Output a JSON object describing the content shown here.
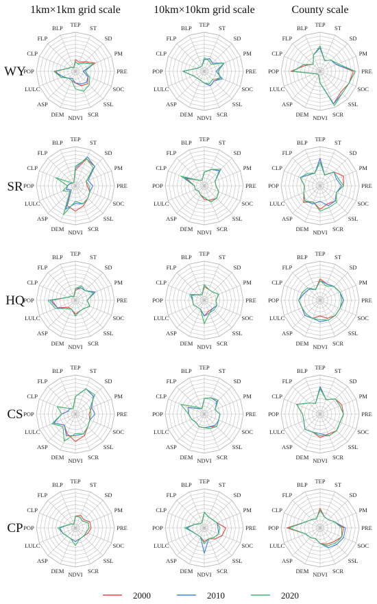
{
  "colors": {
    "2000": "#e8473f",
    "2010": "#3f82e0",
    "2020": "#3fb86a",
    "grid": "#b8b8b8"
  },
  "chart_data": {
    "type": "radar-grid",
    "columns": [
      "1km×1km grid scale",
      "10km×10km grid scale",
      "County scale"
    ],
    "rows": [
      "WY",
      "SR",
      "HQ",
      "CS",
      "CP"
    ],
    "axes": [
      "TEP",
      "ST",
      "SD",
      "PM",
      "PRE",
      "SOC",
      "SSL",
      "SCR",
      "NDVI",
      "DEM",
      "ASP",
      "LULC",
      "POP",
      "CLP",
      "FLP",
      "BLP"
    ],
    "rlim": [
      0,
      1
    ],
    "legend": {
      "placement": "bottom",
      "entries": [
        "2000",
        "2010",
        "2020"
      ]
    },
    "series_names": [
      "2000",
      "2010",
      "2020"
    ],
    "panels": [
      {
        "row": "WY",
        "col": 0,
        "values": [
          [
            0.3,
            0.25,
            0.35,
            0.55,
            0.2,
            0.35,
            0.45,
            0.4,
            0.3,
            0.25,
            0.25,
            0.4,
            0.5,
            0.2,
            0.15,
            0.1
          ],
          [
            0.25,
            0.2,
            0.3,
            0.5,
            0.2,
            0.35,
            0.4,
            0.35,
            0.3,
            0.2,
            0.25,
            0.35,
            0.55,
            0.2,
            0.15,
            0.1
          ],
          [
            0.25,
            0.2,
            0.3,
            0.5,
            0.25,
            0.4,
            0.5,
            0.55,
            0.45,
            0.25,
            0.25,
            0.4,
            0.55,
            0.2,
            0.15,
            0.1
          ]
        ]
      },
      {
        "row": "WY",
        "col": 1,
        "values": [
          [
            0.3,
            0.35,
            0.3,
            0.55,
            0.35,
            0.45,
            0.35,
            0.4,
            0.3,
            0.25,
            0.25,
            0.3,
            0.55,
            0.2,
            0.15,
            0.15
          ],
          [
            0.3,
            0.35,
            0.3,
            0.55,
            0.3,
            0.5,
            0.35,
            0.4,
            0.3,
            0.25,
            0.25,
            0.3,
            0.55,
            0.2,
            0.15,
            0.15
          ],
          [
            0.35,
            0.3,
            0.25,
            0.55,
            0.35,
            0.45,
            0.3,
            0.35,
            0.3,
            0.25,
            0.25,
            0.3,
            0.55,
            0.2,
            0.15,
            0.15
          ]
        ]
      },
      {
        "row": "WY",
        "col": 2,
        "values": [
          [
            0.6,
            0.3,
            0.4,
            0.45,
            0.85,
            0.8,
            0.75,
            0.9,
            0.3,
            0.1,
            0.1,
            0.15,
            0.75,
            0.4,
            0.25,
            0.45
          ],
          [
            0.6,
            0.3,
            0.4,
            0.45,
            0.9,
            0.8,
            0.8,
            0.9,
            0.3,
            0.1,
            0.1,
            0.15,
            0.7,
            0.45,
            0.25,
            0.45
          ],
          [
            0.65,
            0.3,
            0.4,
            0.5,
            0.9,
            0.8,
            0.8,
            0.95,
            0.3,
            0.1,
            0.1,
            0.15,
            0.7,
            0.45,
            0.25,
            0.45
          ]
        ]
      },
      {
        "row": "SR",
        "col": 0,
        "values": [
          [
            0.4,
            0.75,
            0.7,
            0.3,
            0.3,
            0.4,
            0.45,
            0.55,
            0.65,
            0.55,
            0.15,
            0.25,
            0.2,
            0.15,
            0.1,
            0.1
          ],
          [
            0.45,
            0.8,
            0.7,
            0.35,
            0.45,
            0.4,
            0.45,
            0.5,
            0.45,
            0.65,
            0.15,
            0.25,
            0.2,
            0.15,
            0.1,
            0.1
          ],
          [
            0.5,
            0.75,
            0.65,
            0.3,
            0.35,
            0.4,
            0.45,
            0.5,
            0.4,
            0.8,
            0.2,
            0.35,
            0.2,
            0.55,
            0.1,
            0.1
          ]
        ]
      },
      {
        "row": "SR",
        "col": 1,
        "values": [
          [
            0.35,
            0.45,
            0.55,
            0.3,
            0.3,
            0.4,
            0.45,
            0.4,
            0.35,
            0.25,
            0.2,
            0.25,
            0.25,
            0.5,
            0.2,
            0.15
          ],
          [
            0.35,
            0.45,
            0.55,
            0.3,
            0.3,
            0.4,
            0.45,
            0.45,
            0.3,
            0.25,
            0.2,
            0.25,
            0.25,
            0.55,
            0.2,
            0.15
          ],
          [
            0.35,
            0.45,
            0.6,
            0.3,
            0.3,
            0.4,
            0.45,
            0.45,
            0.3,
            0.25,
            0.2,
            0.25,
            0.25,
            0.65,
            0.2,
            0.15
          ]
        ]
      },
      {
        "row": "SR",
        "col": 2,
        "values": [
          [
            0.7,
            0.3,
            0.5,
            0.65,
            0.6,
            0.45,
            0.55,
            0.5,
            0.6,
            0.45,
            0.6,
            0.45,
            0.4,
            0.55,
            0.4,
            0.35
          ],
          [
            0.7,
            0.3,
            0.5,
            0.45,
            0.55,
            0.45,
            0.55,
            0.55,
            0.4,
            0.5,
            0.55,
            0.45,
            0.4,
            0.55,
            0.4,
            0.35
          ],
          [
            0.6,
            0.3,
            0.5,
            0.5,
            0.6,
            0.45,
            0.6,
            0.6,
            0.65,
            0.45,
            0.55,
            0.45,
            0.4,
            0.55,
            0.45,
            0.35
          ]
        ]
      },
      {
        "row": "HQ",
        "col": 0,
        "values": [
          [
            0.25,
            0.35,
            0.35,
            0.55,
            0.3,
            0.4,
            0.3,
            0.3,
            0.35,
            0.25,
            0.25,
            0.5,
            0.6,
            0.2,
            0.15,
            0.1
          ],
          [
            0.3,
            0.35,
            0.35,
            0.55,
            0.3,
            0.4,
            0.3,
            0.3,
            0.4,
            0.25,
            0.3,
            0.5,
            0.65,
            0.2,
            0.15,
            0.1
          ],
          [
            0.3,
            0.4,
            0.35,
            0.5,
            0.3,
            0.4,
            0.3,
            0.3,
            0.4,
            0.25,
            0.3,
            0.55,
            0.7,
            0.2,
            0.15,
            0.1
          ]
        ]
      },
      {
        "row": "HQ",
        "col": 1,
        "values": [
          [
            0.35,
            0.3,
            0.3,
            0.4,
            0.3,
            0.35,
            0.3,
            0.3,
            0.4,
            0.25,
            0.25,
            0.3,
            0.3,
            0.35,
            0.2,
            0.15
          ],
          [
            0.4,
            0.3,
            0.3,
            0.4,
            0.3,
            0.35,
            0.3,
            0.35,
            0.4,
            0.25,
            0.25,
            0.3,
            0.3,
            0.35,
            0.2,
            0.15
          ],
          [
            0.4,
            0.3,
            0.3,
            0.4,
            0.3,
            0.35,
            0.35,
            0.35,
            0.6,
            0.25,
            0.25,
            0.3,
            0.3,
            0.4,
            0.2,
            0.15
          ]
        ]
      },
      {
        "row": "HQ",
        "col": 2,
        "values": [
          [
            0.55,
            0.45,
            0.5,
            0.55,
            0.6,
            0.55,
            0.55,
            0.5,
            0.4,
            0.5,
            0.55,
            0.5,
            0.55,
            0.45,
            0.4,
            0.3
          ],
          [
            0.5,
            0.45,
            0.5,
            0.55,
            0.6,
            0.55,
            0.55,
            0.55,
            0.55,
            0.5,
            0.55,
            0.5,
            0.55,
            0.45,
            0.4,
            0.3
          ],
          [
            0.5,
            0.4,
            0.5,
            0.55,
            0.55,
            0.55,
            0.55,
            0.55,
            0.5,
            0.5,
            0.5,
            0.5,
            0.55,
            0.5,
            0.45,
            0.3
          ]
        ]
      },
      {
        "row": "CS",
        "col": 0,
        "values": [
          [
            0.45,
            0.7,
            0.65,
            0.45,
            0.35,
            0.4,
            0.45,
            0.6,
            0.7,
            0.55,
            0.4,
            0.6,
            0.35,
            0.2,
            0.2,
            0.15
          ],
          [
            0.45,
            0.7,
            0.65,
            0.45,
            0.5,
            0.4,
            0.45,
            0.55,
            0.55,
            0.6,
            0.4,
            0.6,
            0.35,
            0.2,
            0.2,
            0.15
          ],
          [
            0.45,
            0.7,
            0.7,
            0.4,
            0.4,
            0.4,
            0.45,
            0.55,
            0.5,
            0.75,
            0.45,
            0.65,
            0.35,
            0.5,
            0.2,
            0.15
          ]
        ]
      },
      {
        "row": "CS",
        "col": 1,
        "values": [
          [
            0.4,
            0.45,
            0.5,
            0.3,
            0.4,
            0.4,
            0.45,
            0.35,
            0.35,
            0.35,
            0.3,
            0.35,
            0.4,
            0.45,
            0.2,
            0.15
          ],
          [
            0.4,
            0.45,
            0.45,
            0.3,
            0.4,
            0.4,
            0.4,
            0.35,
            0.35,
            0.35,
            0.3,
            0.35,
            0.4,
            0.45,
            0.2,
            0.15
          ],
          [
            0.4,
            0.45,
            0.5,
            0.3,
            0.4,
            0.4,
            0.45,
            0.4,
            0.35,
            0.35,
            0.3,
            0.35,
            0.4,
            0.65,
            0.25,
            0.15
          ]
        ]
      },
      {
        "row": "CS",
        "col": 2,
        "values": [
          [
            0.7,
            0.4,
            0.55,
            0.6,
            0.6,
            0.55,
            0.6,
            0.55,
            0.6,
            0.5,
            0.55,
            0.45,
            0.45,
            0.65,
            0.4,
            0.3
          ],
          [
            0.7,
            0.4,
            0.55,
            0.55,
            0.6,
            0.55,
            0.6,
            0.6,
            0.5,
            0.5,
            0.55,
            0.45,
            0.45,
            0.65,
            0.4,
            0.3
          ],
          [
            0.65,
            0.4,
            0.55,
            0.55,
            0.6,
            0.55,
            0.6,
            0.6,
            0.55,
            0.5,
            0.55,
            0.45,
            0.45,
            0.65,
            0.4,
            0.3
          ]
        ]
      },
      {
        "row": "CP",
        "col": 0,
        "values": [
          [
            0.3,
            0.35,
            0.3,
            0.4,
            0.4,
            0.35,
            0.3,
            0.3,
            0.35,
            0.3,
            0.3,
            0.35,
            0.4,
            0.2,
            0.15,
            0.1
          ],
          [
            0.3,
            0.3,
            0.25,
            0.35,
            0.35,
            0.3,
            0.3,
            0.3,
            0.35,
            0.3,
            0.3,
            0.35,
            0.4,
            0.2,
            0.15,
            0.1
          ],
          [
            0.3,
            0.3,
            0.25,
            0.35,
            0.35,
            0.3,
            0.3,
            0.3,
            0.45,
            0.3,
            0.3,
            0.35,
            0.45,
            0.2,
            0.15,
            0.1
          ]
        ]
      },
      {
        "row": "CP",
        "col": 1,
        "values": [
          [
            0.4,
            0.3,
            0.3,
            0.35,
            0.55,
            0.5,
            0.4,
            0.3,
            0.35,
            0.25,
            0.25,
            0.3,
            0.45,
            0.25,
            0.15,
            0.15
          ],
          [
            0.4,
            0.3,
            0.3,
            0.35,
            0.35,
            0.4,
            0.35,
            0.3,
            0.65,
            0.25,
            0.25,
            0.3,
            0.45,
            0.25,
            0.15,
            0.15
          ],
          [
            0.4,
            0.3,
            0.3,
            0.35,
            0.4,
            0.4,
            0.35,
            0.3,
            0.4,
            0.25,
            0.25,
            0.3,
            0.5,
            0.25,
            0.15,
            0.15
          ]
        ]
      },
      {
        "row": "CP",
        "col": 2,
        "values": [
          [
            0.5,
            0.3,
            0.3,
            0.4,
            0.6,
            0.6,
            0.5,
            0.45,
            0.4,
            0.3,
            0.35,
            0.4,
            0.85,
            0.4,
            0.3,
            0.25
          ],
          [
            0.45,
            0.3,
            0.3,
            0.4,
            0.65,
            0.65,
            0.6,
            0.55,
            0.4,
            0.3,
            0.35,
            0.4,
            0.8,
            0.4,
            0.3,
            0.25
          ],
          [
            0.45,
            0.3,
            0.3,
            0.4,
            0.55,
            0.6,
            0.55,
            0.5,
            0.4,
            0.3,
            0.35,
            0.4,
            0.8,
            0.4,
            0.3,
            0.25
          ]
        ]
      }
    ]
  }
}
